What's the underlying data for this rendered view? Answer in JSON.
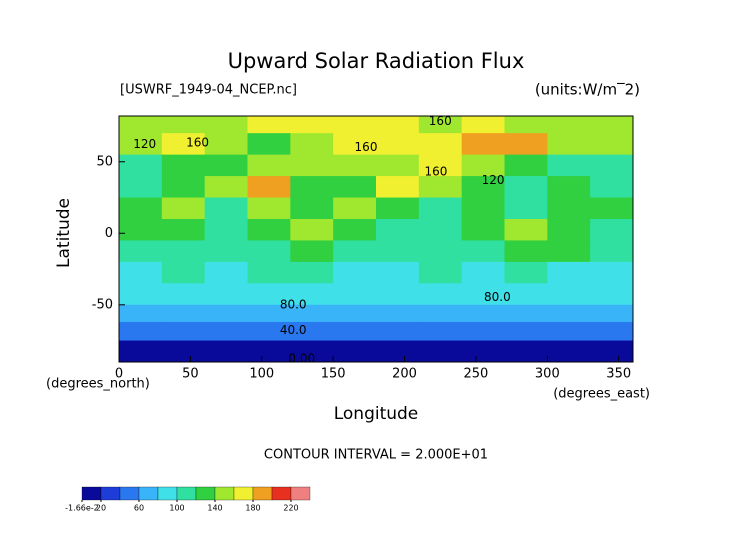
{
  "chart_data": {
    "type": "heatmap",
    "title": "Upward Solar Radiation Flux",
    "subtitle": "[USWRF_1949-04_NCEP.nc]",
    "units": "(units:W/m‾2)",
    "x_label": "Longitude",
    "y_label": "Latitude",
    "x_unit": "(degrees_east)",
    "y_unit": "(degrees_north)",
    "footer": "CONTOUR INTERVAL = 2.000E+01",
    "xlim": [
      0,
      360
    ],
    "ylim": [
      -90,
      82
    ],
    "xticks": [
      0,
      50,
      100,
      150,
      200,
      250,
      300,
      350
    ],
    "yticks": [
      -50,
      0,
      50
    ],
    "lon_edges": [
      0,
      30,
      60,
      90,
      120,
      150,
      180,
      210,
      240,
      270,
      300,
      330,
      360
    ],
    "lat_edges": [
      82,
      70,
      55,
      40,
      25,
      10,
      -5,
      -20,
      -35,
      -50,
      -62,
      -75,
      -90
    ],
    "values": [
      [
        150,
        150,
        150,
        160,
        165,
        160,
        160,
        155,
        160,
        150,
        150,
        150
      ],
      [
        140,
        160,
        150,
        130,
        150,
        170,
        170,
        160,
        190,
        180,
        150,
        140
      ],
      [
        110,
        120,
        130,
        140,
        150,
        150,
        150,
        160,
        150,
        120,
        110,
        110
      ],
      [
        100,
        120,
        140,
        180,
        130,
        120,
        160,
        140,
        130,
        110,
        120,
        110
      ],
      [
        120,
        140,
        110,
        140,
        120,
        140,
        130,
        110,
        120,
        110,
        130,
        120
      ],
      [
        120,
        120,
        110,
        120,
        150,
        130,
        110,
        110,
        120,
        140,
        130,
        110
      ],
      [
        110,
        110,
        100,
        110,
        120,
        110,
        100,
        110,
        110,
        120,
        120,
        100
      ],
      [
        90,
        100,
        90,
        100,
        100,
        90,
        90,
        100,
        90,
        100,
        90,
        90
      ],
      [
        80,
        80,
        80,
        80,
        80,
        80,
        80,
        80,
        80,
        80,
        80,
        80
      ],
      [
        70,
        70,
        70,
        70,
        70,
        70,
        70,
        70,
        70,
        70,
        70,
        70
      ],
      [
        40,
        40,
        40,
        40,
        40,
        40,
        40,
        40,
        40,
        40,
        40,
        40
      ],
      [
        10,
        10,
        10,
        10,
        10,
        10,
        10,
        10,
        10,
        10,
        10,
        10
      ]
    ],
    "levels": [
      0,
      20,
      40,
      60,
      80,
      100,
      120,
      140,
      160,
      180,
      200,
      220,
      240
    ],
    "colors": [
      "#0a0a9a",
      "#1e3cd8",
      "#2a78f0",
      "#3ab4f8",
      "#40e0e8",
      "#30e0a0",
      "#30d040",
      "#a0e830",
      "#f0f030",
      "#f0a020",
      "#e83020",
      "#f08080"
    ],
    "colorbar_ticks": [
      {
        "value": -0.0166,
        "label": "-1.66e-2"
      },
      20,
      60,
      100,
      140,
      180,
      220
    ],
    "annotations": [
      {
        "text": "160",
        "x": 225,
        "y": 78
      },
      {
        "text": "160",
        "x": 55,
        "y": 63
      },
      {
        "text": "120",
        "x": 18,
        "y": 62
      },
      {
        "text": "160",
        "x": 173,
        "y": 60
      },
      {
        "text": "160",
        "x": 222,
        "y": 43
      },
      {
        "text": "120",
        "x": 262,
        "y": 37
      },
      {
        "text": "80.0",
        "x": 122,
        "y": -50
      },
      {
        "text": "80.0",
        "x": 265,
        "y": -45
      },
      {
        "text": "40.0",
        "x": 122,
        "y": -68
      },
      {
        "text": "0.00",
        "x": 128,
        "y": -88
      }
    ]
  }
}
